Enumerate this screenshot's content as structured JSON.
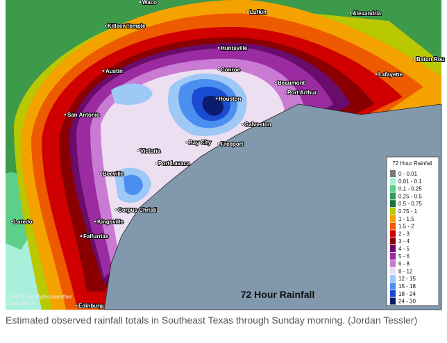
{
  "map": {
    "title": "72 Hour Rainfall",
    "cities": [
      "Waco",
      "Lufkin",
      "Alexandria",
      "Killeen",
      "Temple",
      "Huntsville",
      "Baton Rou",
      "Lafayette",
      "Austin",
      "Conroe",
      "Beaumont",
      "Port Arthur",
      "Houston",
      "San Antonio",
      "Galveston",
      "Bay City",
      "Freeport",
      "Victoria",
      "Port Lavaca",
      "Beeville",
      "Corpus Christi",
      "Laredo",
      "Kingsville",
      "Falfurrias",
      "Edinburg"
    ],
    "legend": {
      "title": "72 Hour Rainfall",
      "items": [
        {
          "label": "0 - 0.01",
          "color": "#7a7a7a"
        },
        {
          "label": "0.01 - 0.1",
          "color": "#a8f0dc"
        },
        {
          "label": "0.1 - 0.25",
          "color": "#5ccf8a"
        },
        {
          "label": "0.25 - 0.5",
          "color": "#2e9e57"
        },
        {
          "label": "0.5 - 0.75",
          "color": "#17743a"
        },
        {
          "label": "0.75 - 1",
          "color": "#b9c800"
        },
        {
          "label": "1 - 1.5",
          "color": "#f3a200"
        },
        {
          "label": "1.5 - 2",
          "color": "#ee5a00"
        },
        {
          "label": "2 - 3",
          "color": "#d10000"
        },
        {
          "label": "3 - 4",
          "color": "#8a0000"
        },
        {
          "label": "4 - 5",
          "color": "#6a0c6c"
        },
        {
          "label": "5 - 6",
          "color": "#9b2ba1"
        },
        {
          "label": "6 - 8",
          "color": "#c97ad2"
        },
        {
          "label": "8 - 12",
          "color": "#ecdff2"
        },
        {
          "label": "12 - 15",
          "color": "#9ec8f5"
        },
        {
          "label": "15 - 18",
          "color": "#4a8ef0"
        },
        {
          "label": "18 - 24",
          "color": "#1b4bd0"
        },
        {
          "label": "24 - 30",
          "color": "#0b1b6e"
        }
      ]
    },
    "credit": [
      "Graphic by @jtessweather",
      "Data AHPS"
    ]
  },
  "caption": "Estimated observed rainfall totals in Southeast Texas through Sunday morning. (Jordan Tessler)"
}
